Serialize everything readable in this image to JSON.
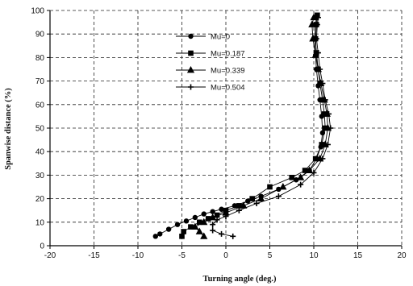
{
  "chart_data": {
    "type": "line",
    "title": "",
    "xlabel": "Turning angle (deg.)",
    "ylabel": "Spanwise distance (%)",
    "xlim": [
      -20,
      20
    ],
    "ylim": [
      0,
      100
    ],
    "xticks": [
      -20,
      -15,
      -10,
      -5,
      0,
      5,
      10,
      15,
      20
    ],
    "yticks": [
      0,
      10,
      20,
      30,
      40,
      50,
      60,
      70,
      80,
      90,
      100
    ],
    "grid": "dashed",
    "legend_position": "top-center",
    "series": [
      {
        "name": "Mu=0",
        "marker": "circle",
        "points": [
          [
            -8,
            4
          ],
          [
            -7.5,
            5
          ],
          [
            -6.5,
            7
          ],
          [
            -5.5,
            9
          ],
          [
            -4.5,
            10.5
          ],
          [
            -3.5,
            12
          ],
          [
            -2.5,
            13.5
          ],
          [
            -1.5,
            14.5
          ],
          [
            -0.5,
            15.5
          ],
          [
            1,
            17
          ],
          [
            2.5,
            19
          ],
          [
            4,
            21
          ],
          [
            6,
            24
          ],
          [
            8,
            28
          ],
          [
            9.5,
            32
          ],
          [
            10.3,
            37
          ],
          [
            10.8,
            42
          ],
          [
            11,
            48
          ],
          [
            10.9,
            55
          ],
          [
            10.7,
            62
          ],
          [
            10.5,
            68
          ],
          [
            10.3,
            75
          ],
          [
            10.2,
            81
          ],
          [
            10.1,
            88
          ],
          [
            10.2,
            94
          ],
          [
            10.3,
            97
          ]
        ]
      },
      {
        "name": "Mu=0.187",
        "marker": "square",
        "points": [
          [
            -5,
            4
          ],
          [
            -4.8,
            6
          ],
          [
            -4,
            8
          ],
          [
            -3,
            10
          ],
          [
            -2,
            11.5
          ],
          [
            -1,
            13
          ],
          [
            0,
            15
          ],
          [
            1.5,
            17
          ],
          [
            3,
            20
          ],
          [
            5,
            25
          ],
          [
            7.5,
            29
          ],
          [
            9,
            32
          ],
          [
            10.2,
            37
          ],
          [
            10.9,
            43
          ],
          [
            11.3,
            50
          ],
          [
            11.2,
            56
          ],
          [
            11,
            62
          ],
          [
            10.7,
            69
          ],
          [
            10.5,
            75
          ],
          [
            10.3,
            82
          ],
          [
            10.2,
            88
          ],
          [
            10.3,
            94
          ],
          [
            10.4,
            98
          ]
        ]
      },
      {
        "name": "Mu=0.339",
        "marker": "triangle",
        "points": [
          [
            -2.5,
            4
          ],
          [
            -3,
            6
          ],
          [
            -3.5,
            8
          ],
          [
            -2.5,
            10
          ],
          [
            -1.5,
            12
          ],
          [
            0,
            14
          ],
          [
            2,
            17
          ],
          [
            4,
            20
          ],
          [
            6.5,
            25
          ],
          [
            8.5,
            29
          ],
          [
            9.5,
            32
          ],
          [
            10.7,
            37
          ],
          [
            11.3,
            43
          ],
          [
            11.6,
            50
          ],
          [
            11.5,
            56
          ],
          [
            11.2,
            62
          ],
          [
            10.8,
            69
          ],
          [
            10.5,
            75
          ],
          [
            10.2,
            81
          ],
          [
            9.9,
            88
          ],
          [
            9.8,
            94
          ],
          [
            10,
            97
          ]
        ]
      },
      {
        "name": "Mu=0.504",
        "marker": "cross",
        "points": [
          [
            0.8,
            4
          ],
          [
            -0.5,
            5
          ],
          [
            -1.5,
            6.5
          ],
          [
            -1.5,
            9
          ],
          [
            -1,
            11
          ],
          [
            0,
            12.5
          ],
          [
            1.5,
            15
          ],
          [
            3.5,
            18
          ],
          [
            6,
            21
          ],
          [
            8.5,
            26
          ],
          [
            10,
            31
          ],
          [
            11,
            37
          ],
          [
            11.6,
            43
          ],
          [
            11.9,
            50
          ],
          [
            11.7,
            56
          ],
          [
            11.3,
            62
          ],
          [
            11,
            69
          ],
          [
            10.7,
            75
          ],
          [
            10.5,
            82
          ],
          [
            10.3,
            88
          ],
          [
            10.4,
            94
          ],
          [
            10.5,
            97
          ]
        ]
      }
    ]
  }
}
